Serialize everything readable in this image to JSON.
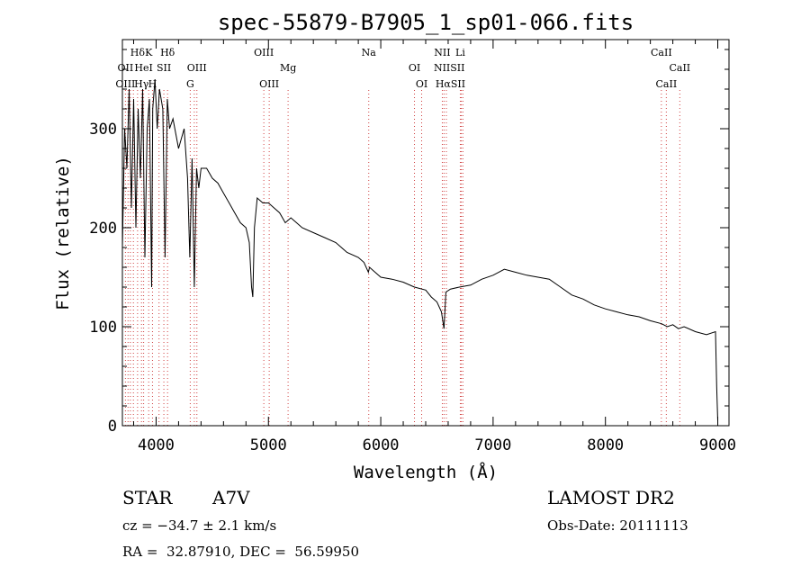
{
  "chart_data": {
    "type": "line",
    "title": "spec-55879-B7905_1_sp01-066.fits",
    "xlabel": "Wavelength (Å)",
    "ylabel": "Flux (relative)",
    "xlim": [
      3700,
      9100
    ],
    "ylim": [
      0,
      390
    ],
    "x_ticks": [
      4000,
      5000,
      6000,
      7000,
      8000,
      9000
    ],
    "y_ticks": [
      0,
      100,
      200,
      300
    ],
    "grid": false,
    "series": [
      {
        "x": [
          3700,
          3720,
          3740,
          3760,
          3780,
          3800,
          3820,
          3840,
          3860,
          3880,
          3900,
          3920,
          3940,
          3960,
          3970,
          3990,
          4010,
          4030,
          4060,
          4080,
          4100,
          4120,
          4150,
          4200,
          4250,
          4280,
          4300,
          4320,
          4340,
          4360,
          4380,
          4400,
          4450,
          4500,
          4550,
          4600,
          4650,
          4700,
          4750,
          4800,
          4830,
          4850,
          4861,
          4875,
          4900,
          4950,
          5000,
          5050,
          5100,
          5150,
          5200,
          5250,
          5300,
          5400,
          5500,
          5600,
          5700,
          5800,
          5850,
          5890,
          5900,
          5950,
          6000,
          6100,
          6200,
          6300,
          6400,
          6450,
          6500,
          6540,
          6563,
          6580,
          6620,
          6700,
          6800,
          6900,
          7000,
          7100,
          7200,
          7300,
          7400,
          7500,
          7600,
          7700,
          7800,
          7900,
          8000,
          8100,
          8200,
          8300,
          8400,
          8500,
          8550,
          8600,
          8650,
          8700,
          8800,
          8900,
          8980,
          8990,
          9000
        ],
        "y": [
          180,
          300,
          260,
          340,
          220,
          330,
          200,
          320,
          250,
          340,
          170,
          300,
          330,
          140,
          320,
          350,
          300,
          340,
          320,
          170,
          330,
          300,
          310,
          280,
          300,
          250,
          170,
          270,
          140,
          260,
          240,
          260,
          260,
          250,
          245,
          235,
          225,
          215,
          205,
          200,
          185,
          140,
          130,
          200,
          230,
          225,
          225,
          220,
          215,
          205,
          210,
          205,
          200,
          195,
          190,
          185,
          175,
          170,
          165,
          155,
          160,
          155,
          150,
          148,
          145,
          140,
          137,
          130,
          125,
          115,
          98,
          135,
          138,
          140,
          142,
          148,
          152,
          158,
          155,
          152,
          150,
          148,
          140,
          132,
          128,
          122,
          118,
          115,
          112,
          110,
          106,
          103,
          100,
          102,
          98,
          100,
          95,
          92,
          95,
          40,
          5
        ]
      }
    ],
    "line_labels": [
      {
        "text": "Hδ",
        "x": 3835,
        "row": 1
      },
      {
        "text": "K",
        "x": 3934,
        "row": 1
      },
      {
        "text": "Hδ",
        "x": 4102,
        "row": 1
      },
      {
        "text": "OII",
        "x": 3727,
        "row": 2
      },
      {
        "text": "HeI",
        "x": 3889,
        "row": 2
      },
      {
        "text": "SII",
        "x": 4069,
        "row": 2
      },
      {
        "text": "OIII",
        "x": 4363,
        "row": 2
      },
      {
        "text": "OIII",
        "x": 3727,
        "row": 3
      },
      {
        "text": "Hγ",
        "x": 3870,
        "row": 3
      },
      {
        "text": "H",
        "x": 3968,
        "row": 3
      },
      {
        "text": "G",
        "x": 4304,
        "row": 3
      },
      {
        "text": "OIII",
        "x": 4959,
        "row": 1
      },
      {
        "text": "Mg",
        "x": 5175,
        "row": 2
      },
      {
        "text": "OIII",
        "x": 5007,
        "row": 3
      },
      {
        "text": "Na",
        "x": 5893,
        "row": 1
      },
      {
        "text": "OI",
        "x": 6300,
        "row": 2
      },
      {
        "text": "OI",
        "x": 6364,
        "row": 3
      },
      {
        "text": "NII",
        "x": 6548,
        "row": 1
      },
      {
        "text": "Li",
        "x": 6708,
        "row": 1
      },
      {
        "text": "NIISII",
        "x": 6610,
        "row": 2
      },
      {
        "text": "HαSII",
        "x": 6620,
        "row": 3
      },
      {
        "text": "CaII",
        "x": 8498,
        "row": 1
      },
      {
        "text": "CaII",
        "x": 8662,
        "row": 2
      },
      {
        "text": "CaII",
        "x": 8542,
        "row": 3
      }
    ],
    "marker_lines": [
      3727,
      3750,
      3771,
      3798,
      3835,
      3870,
      3889,
      3934,
      3968,
      4026,
      4069,
      4102,
      4304,
      4340,
      4363,
      4959,
      5007,
      5175,
      5893,
      6300,
      6364,
      6548,
      6563,
      6584,
      6708,
      6717,
      6731,
      8498,
      8542,
      8662
    ]
  },
  "info": {
    "object_type": "STAR",
    "subclass": "A7V",
    "survey": "LAMOST DR2",
    "redshift_text": "cz = −34.7 ± 2.1 km/s",
    "obs_date_text": "Obs-Date: 20111113",
    "coords_text": "RA =  32.87910, DEC =  56.59950"
  }
}
